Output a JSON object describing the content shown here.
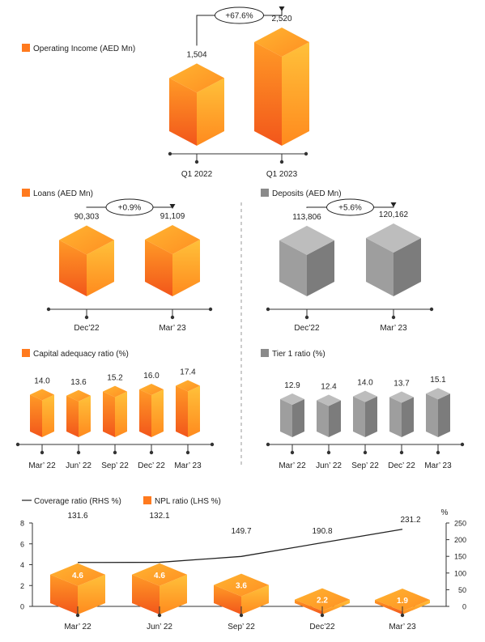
{
  "colors": {
    "orange_light": "#FFB02E",
    "orange_mid": "#FF8A1E",
    "orange_dark": "#F25A1C",
    "gray_top": "#BDBDBD",
    "gray_left": "#9E9E9E",
    "gray_right": "#7C7C7C",
    "axis": "#333333",
    "divider": "#9A9A9A"
  },
  "chart_data": [
    {
      "id": "operating_income",
      "type": "bar",
      "title": "Operating Income (AED Mn)",
      "color": "orange",
      "categories": [
        "Q1 2022",
        "Q1 2023"
      ],
      "values": [
        1504,
        2520
      ],
      "value_labels": [
        "1,504",
        "2,520"
      ],
      "change_label": "+67.6%"
    },
    {
      "id": "loans",
      "type": "bar",
      "title": "Loans (AED Mn)",
      "color": "orange",
      "categories": [
        "Dec’22",
        "Mar’ 23"
      ],
      "values": [
        90303,
        91109
      ],
      "value_labels": [
        "90,303",
        "91,109"
      ],
      "change_label": "+0.9%"
    },
    {
      "id": "deposits",
      "type": "bar",
      "title": "Deposits (AED Mn)",
      "color": "gray",
      "categories": [
        "Dec’22",
        "Mar’ 23"
      ],
      "values": [
        113806,
        120162
      ],
      "value_labels": [
        "113,806",
        "120,162"
      ],
      "change_label": "+5.6%"
    },
    {
      "id": "capital_adequacy",
      "type": "bar",
      "title": "Capital adequacy ratio (%)",
      "color": "orange",
      "categories": [
        "Mar’ 22",
        "Jun’ 22",
        "Sep’ 22",
        "Dec’ 22",
        "Mar’ 23"
      ],
      "values": [
        14.0,
        13.6,
        15.2,
        16.0,
        17.4
      ],
      "value_labels": [
        "14.0",
        "13.6",
        "15.2",
        "16.0",
        "17.4"
      ]
    },
    {
      "id": "tier1",
      "type": "bar",
      "title": "Tier 1 ratio (%)",
      "color": "gray",
      "categories": [
        "Mar’ 22",
        "Jun’ 22",
        "Sep’ 22",
        "Dec’ 22",
        "Mar’ 23"
      ],
      "values": [
        12.9,
        12.4,
        14.0,
        13.7,
        15.1
      ],
      "value_labels": [
        "12.9",
        "12.4",
        "14.0",
        "13.7",
        "15.1"
      ]
    },
    {
      "id": "npl_coverage",
      "type": "bar",
      "categories": [
        "Mar’ 22",
        "Jun’ 22",
        "Sep’ 22",
        "Dec’22",
        "Mar’ 23"
      ],
      "legend": {
        "line_label": "Coverage ratio (RHS %)",
        "bar_label": "NPL ratio (LHS %)"
      },
      "series": [
        {
          "name": "NPL ratio (LHS %)",
          "type": "bar",
          "axis": "left",
          "values": [
            4.6,
            4.6,
            3.6,
            2.2,
            1.9
          ],
          "value_labels": [
            "4.6",
            "4.6",
            "3.6",
            "2.2",
            "1.9"
          ]
        },
        {
          "name": "Coverage ratio (RHS %)",
          "type": "line",
          "axis": "right",
          "values": [
            131.6,
            132.1,
            149.7,
            190.8,
            231.2
          ],
          "value_labels": [
            "131.6",
            "132.1",
            "149.7",
            "190.8",
            "231.2"
          ]
        }
      ],
      "left_axis": {
        "ylim": [
          0,
          8
        ],
        "ticks": [
          "0",
          "2",
          "4",
          "6",
          "8"
        ]
      },
      "right_axis": {
        "ylim": [
          0,
          250
        ],
        "ticks": [
          "0",
          "50",
          "100",
          "150",
          "200",
          "250"
        ],
        "unit": "%"
      }
    }
  ]
}
